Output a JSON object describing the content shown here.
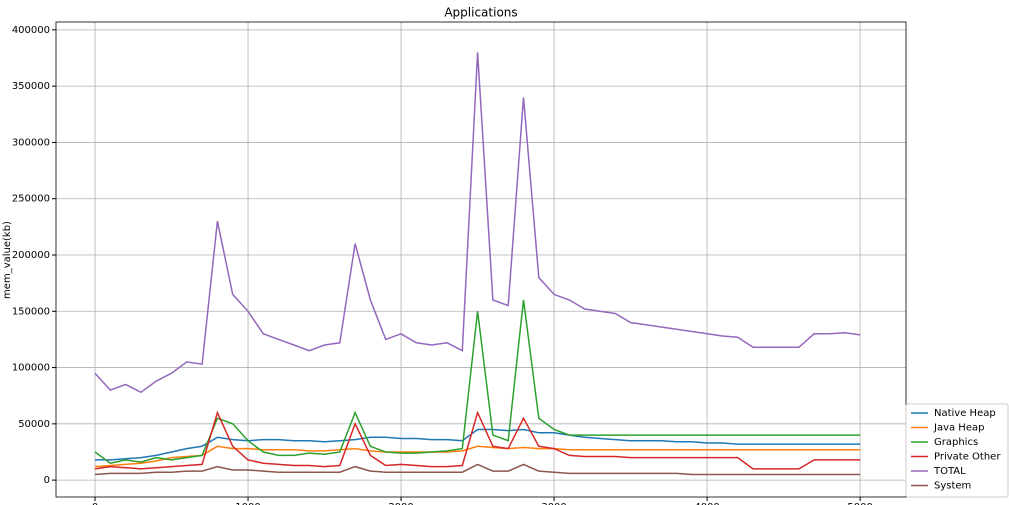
{
  "chart_data": {
    "type": "line",
    "title": "Applications",
    "y_label": "mem_value(kb)",
    "x": [
      0,
      100,
      200,
      300,
      400,
      500,
      600,
      700,
      800,
      900,
      1000,
      1100,
      1200,
      1300,
      1400,
      1500,
      1600,
      1700,
      1800,
      1900,
      2000,
      2100,
      2200,
      2300,
      2400,
      2500,
      2600,
      2700,
      2800,
      2900,
      3000,
      3100,
      3200,
      3300,
      3400,
      3500,
      3600,
      3700,
      3800,
      3900,
      4000,
      4100,
      4200,
      4300,
      4400,
      4500,
      4600,
      4700,
      4800,
      4900,
      5000
    ],
    "series": [
      {
        "name": "Native Heap",
        "color": "#1f77b4",
        "values": [
          18000,
          18000,
          19000,
          20000,
          22000,
          25000,
          28000,
          30000,
          38000,
          36000,
          35000,
          36000,
          36000,
          35000,
          35000,
          34000,
          35000,
          36000,
          38000,
          38000,
          37000,
          37000,
          36000,
          36000,
          35000,
          45000,
          45000,
          44000,
          45000,
          42000,
          42000,
          40000,
          38000,
          37000,
          36000,
          35000,
          35000,
          35000,
          34000,
          34000,
          33000,
          33000,
          32000,
          32000,
          32000,
          32000,
          32000,
          32000,
          32000,
          32000,
          32000
        ]
      },
      {
        "name": "Java Heap",
        "color": "#ff7f0e",
        "values": [
          12000,
          13000,
          14000,
          15000,
          17000,
          20000,
          21000,
          22000,
          30000,
          28000,
          28000,
          27000,
          27000,
          27000,
          26000,
          26000,
          27000,
          28000,
          26000,
          25000,
          25000,
          25000,
          25000,
          25000,
          26000,
          30000,
          29000,
          28000,
          29000,
          28000,
          28000,
          27000,
          27000,
          27000,
          27000,
          27000,
          27000,
          27000,
          27000,
          27000,
          27000,
          27000,
          27000,
          27000,
          27000,
          27000,
          27000,
          27000,
          27000,
          27000,
          27000
        ]
      },
      {
        "name": "Graphics",
        "color": "#2ca02c",
        "values": [
          25000,
          15000,
          18000,
          16000,
          20000,
          18000,
          20000,
          22000,
          55000,
          50000,
          35000,
          25000,
          22000,
          22000,
          24000,
          23000,
          25000,
          60000,
          30000,
          25000,
          24000,
          24000,
          25000,
          26000,
          28000,
          150000,
          40000,
          35000,
          160000,
          55000,
          45000,
          40000,
          40000,
          40000,
          40000,
          40000,
          40000,
          40000,
          40000,
          40000,
          40000,
          40000,
          40000,
          40000,
          40000,
          40000,
          40000,
          40000,
          40000,
          40000,
          40000
        ]
      },
      {
        "name": "Private Other",
        "color": "#d62728",
        "values": [
          10000,
          12000,
          11000,
          10000,
          11000,
          12000,
          13000,
          14000,
          60000,
          30000,
          18000,
          15000,
          14000,
          13000,
          13000,
          12000,
          13000,
          50000,
          22000,
          13000,
          14000,
          13000,
          12000,
          12000,
          13000,
          60000,
          30000,
          28000,
          55000,
          30000,
          28000,
          22000,
          21000,
          21000,
          21000,
          20000,
          20000,
          20000,
          20000,
          20000,
          20000,
          20000,
          20000,
          10000,
          10000,
          10000,
          10000,
          18000,
          18000,
          18000,
          18000
        ]
      },
      {
        "name": "TOTAL",
        "color": "#9467bd",
        "values": [
          95000,
          80000,
          85000,
          78000,
          88000,
          95000,
          105000,
          103000,
          230000,
          165000,
          150000,
          130000,
          125000,
          120000,
          115000,
          120000,
          122000,
          210000,
          160000,
          125000,
          130000,
          122000,
          120000,
          122000,
          115000,
          380000,
          160000,
          155000,
          340000,
          180000,
          165000,
          160000,
          152000,
          150000,
          148000,
          140000,
          138000,
          136000,
          134000,
          132000,
          130000,
          128000,
          127000,
          118000,
          118000,
          118000,
          118000,
          130000,
          130000,
          131000,
          129000
        ]
      },
      {
        "name": "System",
        "color": "#8c564b",
        "values": [
          5000,
          6000,
          6000,
          6000,
          7000,
          7000,
          8000,
          8000,
          12000,
          9000,
          9000,
          8000,
          7000,
          7000,
          7000,
          7000,
          7000,
          12000,
          8000,
          7000,
          7000,
          7000,
          7000,
          7000,
          7000,
          14000,
          8000,
          8000,
          14000,
          8000,
          7000,
          6000,
          6000,
          6000,
          6000,
          6000,
          6000,
          6000,
          6000,
          5000,
          5000,
          5000,
          5000,
          5000,
          5000,
          5000,
          5000,
          5000,
          5000,
          5000,
          5000
        ]
      }
    ],
    "xlim": [
      -255,
      5300
    ],
    "ylim": [
      -15000,
      407000
    ],
    "xticks": [
      0,
      1000,
      2000,
      3000,
      4000,
      5000
    ],
    "yticks": [
      0,
      50000,
      100000,
      150000,
      200000,
      250000,
      300000,
      350000,
      400000
    ],
    "grid": true,
    "legend": "lower right"
  }
}
